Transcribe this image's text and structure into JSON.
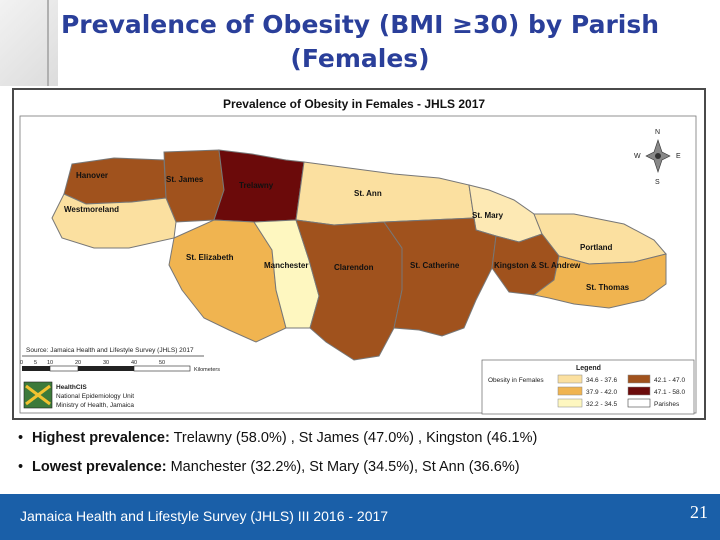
{
  "title": {
    "line1": "Prevalence of Obesity (BMI ≥30) by Parish",
    "line2": "(Females)"
  },
  "map": {
    "heading": "Prevalence of Obesity in Females - JHLS 2017",
    "source": "Source: Jamaica Health and Lifestyle Survey (JHLS) 2017",
    "scale_ticks": [
      "0",
      "5",
      "10",
      "20",
      "30",
      "40",
      "50"
    ],
    "scale_unit": "Kilometers",
    "logo_lines": [
      "HealthCIS",
      "National Epidemiology Unit",
      "Ministry of Health, Jamaica"
    ],
    "parishes": [
      {
        "name": "Hanover",
        "color": "#a0521d"
      },
      {
        "name": "St. James",
        "color": "#a0521d"
      },
      {
        "name": "Trelawny",
        "color": "#6b0a0a"
      },
      {
        "name": "St. Ann",
        "color": "#fbe0a0"
      },
      {
        "name": "Westmoreland",
        "color": "#fbe0a0"
      },
      {
        "name": "St. Mary",
        "color": "#fde9b4"
      },
      {
        "name": "Portland",
        "color": "#fbe0a0"
      },
      {
        "name": "St. Elizabeth",
        "color": "#f0b450"
      },
      {
        "name": "Manchester",
        "color": "#fef7c0"
      },
      {
        "name": "Clarendon",
        "color": "#a0521d"
      },
      {
        "name": "St. Catherine",
        "color": "#a0521d"
      },
      {
        "name": "Kingston & St. Andrew",
        "color": "#a0521d"
      },
      {
        "name": "St. Thomas",
        "color": "#f0b450"
      }
    ],
    "compass": {
      "n": "N",
      "s": "S",
      "e": "E",
      "w": "W"
    },
    "legend": {
      "title": "Legend",
      "group_label": "Obesity in Females",
      "items": [
        {
          "label": "34.6 - 37.6",
          "color": "#fbe0a0"
        },
        {
          "label": "37.9 - 42.0",
          "color": "#f0b450"
        },
        {
          "label": "32.2 - 34.5",
          "color": "#fef7c0"
        },
        {
          "label": "42.1 - 47.0",
          "color": "#a0521d"
        },
        {
          "label": "47.1 - 58.0",
          "color": "#6b0a0a"
        },
        {
          "label": "Parishes",
          "color": "#ffffff"
        }
      ]
    }
  },
  "bullets": [
    {
      "label": "Highest prevalence:",
      "text": " Trelawny (58.0%) , St James (47.0%) , Kingston (46.1%)"
    },
    {
      "label": "Lowest prevalence:",
      "text": " Manchester (32.2%), St Mary (34.5%), St Ann (36.6%)"
    }
  ],
  "footer": {
    "text": "Jamaica Health and Lifestyle Survey (JHLS) III 2016 - 2017",
    "page": "21"
  }
}
